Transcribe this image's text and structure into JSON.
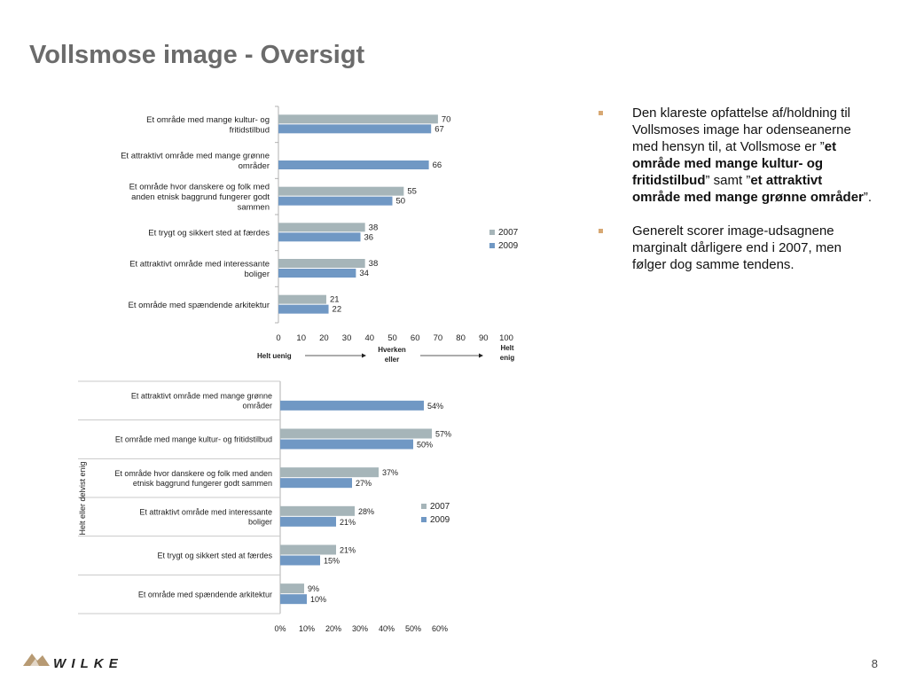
{
  "page": {
    "title": "Vollsmose image - Oversigt",
    "page_number": "8",
    "logo_text": "WILKE"
  },
  "bullets": [
    [
      {
        "text": "Den klareste opfattelse af/holdning til Vollsmoses image har odenseanerne med hensyn til, at Vollsmose er ”",
        "bold": false
      },
      {
        "text": "et område med mange kultur- og fritidstilbud",
        "bold": true
      },
      {
        "text": "” samt ”",
        "bold": false
      },
      {
        "text": "et attraktivt område med mange grønne områder",
        "bold": true
      },
      {
        "text": "”.",
        "bold": false
      }
    ],
    [
      {
        "text": "Generelt scorer image-udsagnene marginalt dårligere end i 2007, men følger dog samme tendens.",
        "bold": false
      }
    ]
  ],
  "colors": {
    "series_2007": "#a6b5b9",
    "series_2009": "#7098c4",
    "bullet": "#d7a873",
    "title": "#6b6b6b",
    "logo": "#b79a73"
  },
  "chart_data": [
    {
      "type": "bar",
      "orientation": "horizontal",
      "categories": [
        [
          "Et område med mange kultur- og",
          "fritidstilbud"
        ],
        [
          "Et attraktivt område med mange grønne",
          "områder"
        ],
        [
          "Et område hvor danskere og folk med",
          "anden etnisk baggrund fungerer godt",
          "sammen"
        ],
        [
          "Et trygt og sikkert sted at færdes"
        ],
        [
          "Et attraktivt område med interessante",
          "boliger"
        ],
        [
          "Et område med spændende arkitektur"
        ]
      ],
      "series": [
        {
          "name": "2007",
          "values": [
            70,
            null,
            55,
            38,
            38,
            21
          ]
        },
        {
          "name": "2009",
          "values": [
            67,
            66,
            50,
            36,
            34,
            22
          ]
        }
      ],
      "xlim": [
        0,
        100
      ],
      "xticks": [
        "0",
        "10",
        "20",
        "30",
        "40",
        "50",
        "60",
        "70",
        "80",
        "90",
        "100"
      ],
      "value_suffix": "",
      "legend": "right",
      "scale_annotation": {
        "left": "Helt uenig",
        "middle": [
          "Hverken",
          "eller"
        ],
        "right": [
          "Helt",
          "enig"
        ]
      }
    },
    {
      "type": "bar",
      "orientation": "horizontal",
      "categories": [
        [
          "Et attraktivt område med mange grønne",
          "områder"
        ],
        [
          "Et område med mange kultur- og fritidstilbud"
        ],
        [
          "Et område hvor danskere og folk med anden",
          "etnisk baggrund fungerer godt sammen"
        ],
        [
          "Et attraktivt område med interessante",
          "boliger"
        ],
        [
          "Et trygt og sikkert sted at færdes"
        ],
        [
          "Et område med spændende arkitektur"
        ]
      ],
      "series": [
        {
          "name": "2007",
          "values": [
            null,
            57,
            37,
            28,
            21,
            9
          ]
        },
        {
          "name": "2009",
          "values": [
            54,
            50,
            27,
            21,
            15,
            10
          ]
        }
      ],
      "xlim": [
        0,
        60
      ],
      "xticks": [
        "0%",
        "10%",
        "20%",
        "30%",
        "40%",
        "50%",
        "60%"
      ],
      "value_suffix": "%",
      "ylabel": "Helt eller delvist enig",
      "legend": "right"
    }
  ]
}
